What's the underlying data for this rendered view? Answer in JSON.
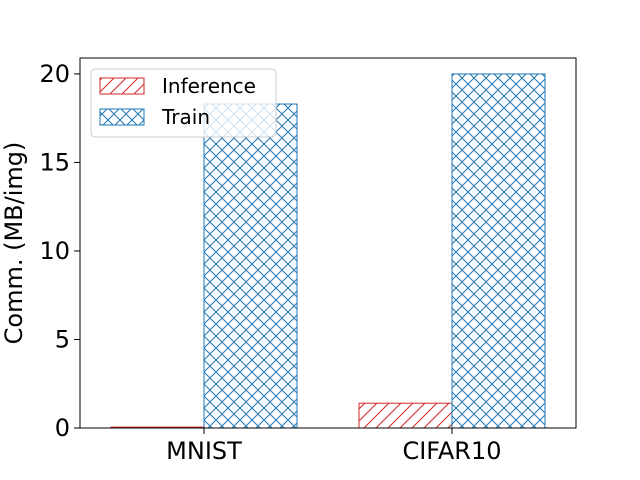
{
  "chart_data": {
    "type": "bar",
    "categories": [
      "MNIST",
      "CIFAR10"
    ],
    "series": [
      {
        "name": "Inference",
        "values": [
          0.05,
          1.4
        ],
        "color": "#d62728",
        "hatch": "diagonal"
      },
      {
        "name": "Train",
        "values": [
          18.3,
          20.0
        ],
        "color": "#1f77b4",
        "hatch": "crosshatch"
      }
    ],
    "ylabel": "Comm. (MB/img)",
    "xlabel": "",
    "ylim": [
      0,
      20.9
    ],
    "yticks": [
      0,
      5,
      10,
      15,
      20
    ],
    "legend_position": "top-left",
    "grid": false
  }
}
